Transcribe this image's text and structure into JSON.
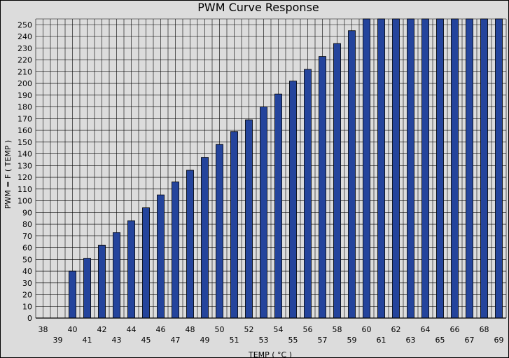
{
  "chart_data": {
    "type": "bar",
    "title": "PWM Curve Response",
    "xlabel": "TEMP ( °C )",
    "ylabel": "PWM = F ( TEMP )",
    "categories": [
      "38",
      "39",
      "40",
      "41",
      "42",
      "43",
      "44",
      "45",
      "46",
      "47",
      "48",
      "49",
      "50",
      "51",
      "52",
      "53",
      "54",
      "55",
      "56",
      "57",
      "58",
      "59",
      "60",
      "61",
      "62",
      "63",
      "64",
      "65",
      "66",
      "67",
      "68",
      "69"
    ],
    "values": [
      0,
      0,
      40,
      51,
      62,
      73,
      83,
      94,
      105,
      116,
      126,
      137,
      148,
      159,
      169,
      180,
      191,
      202,
      212,
      223,
      234,
      245,
      255,
      255,
      255,
      255,
      255,
      255,
      255,
      255,
      255,
      255
    ],
    "ylim": [
      0,
      255
    ],
    "yticks": [
      0,
      10,
      20,
      30,
      40,
      50,
      60,
      70,
      80,
      90,
      100,
      110,
      120,
      130,
      140,
      150,
      160,
      170,
      180,
      190,
      200,
      210,
      220,
      230,
      240,
      250
    ],
    "grid": true,
    "legend": "none",
    "colors": {
      "bar_fill": "#24449c",
      "bar_stroke": "#000000",
      "plot_bg": "#dcdcdc",
      "grid": "#000000"
    }
  }
}
